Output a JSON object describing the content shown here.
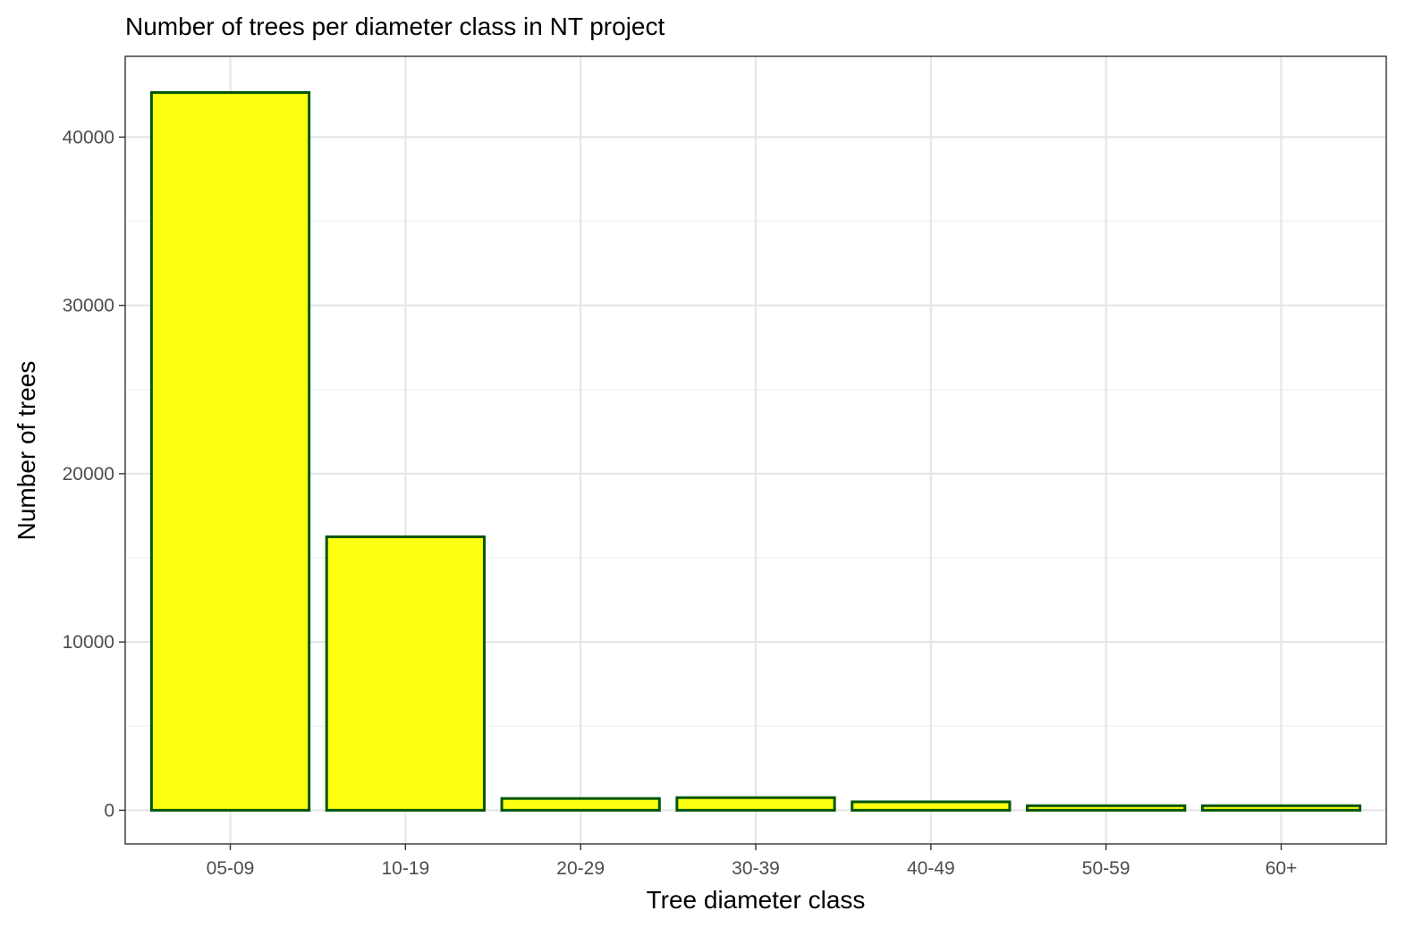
{
  "chart_data": {
    "type": "bar",
    "title": "Number of trees per diameter class in NT project",
    "xlabel": "Tree diameter class",
    "ylabel": "Number of trees",
    "categories": [
      "05-09",
      "10-19",
      "20-29",
      "30-39",
      "40-49",
      "50-59",
      "60+"
    ],
    "values": [
      42650,
      16250,
      700,
      750,
      500,
      270,
      270
    ],
    "ylim": [
      -2000,
      44800
    ],
    "yticks": [
      0,
      10000,
      20000,
      30000,
      40000
    ],
    "ytick_labels": [
      "0",
      "10000",
      "20000",
      "30000",
      "40000"
    ],
    "y_minor_ticks": [
      5000,
      15000,
      25000,
      35000
    ],
    "grid": true,
    "legend": "none",
    "colors": {
      "bar_fill": "#ffff10",
      "bar_edge": "#00550a",
      "grid_major": "#e6e6e6",
      "grid_minor": "#f0f0f0",
      "panel_border": "#333333",
      "tick_mark": "#333333",
      "tick_text": "#4d4d4d"
    }
  }
}
